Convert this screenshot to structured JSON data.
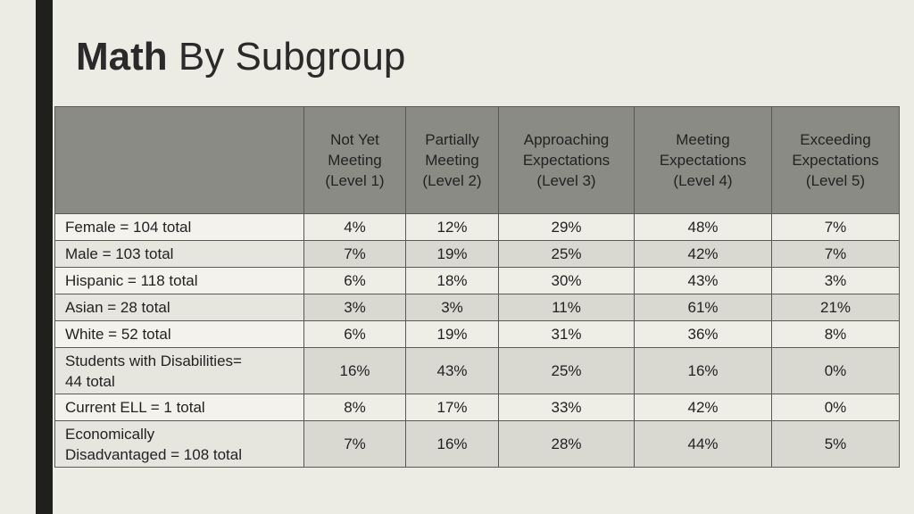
{
  "title": {
    "bold": "Math",
    "rest": "By Subgroup"
  },
  "columns": [
    [
      "Not Yet",
      "Meeting",
      "(Level 1)"
    ],
    [
      "Partially",
      "Meeting",
      "(Level 2)"
    ],
    [
      "Approaching",
      "Expectations",
      "(Level 3)"
    ],
    [
      "Meeting",
      "Expectations",
      "(Level 4)"
    ],
    [
      "Exceeding",
      "Expectations",
      "(Level 5)"
    ]
  ],
  "rows": [
    {
      "label": [
        "Female = 104 total"
      ],
      "values": [
        "4%",
        "12%",
        "29%",
        "48%",
        "7%"
      ]
    },
    {
      "label": [
        "Male = 103 total"
      ],
      "values": [
        "7%",
        "19%",
        "25%",
        "42%",
        "7%"
      ]
    },
    {
      "label": [
        "Hispanic = 118 total"
      ],
      "values": [
        "6%",
        "18%",
        "30%",
        "43%",
        "3%"
      ]
    },
    {
      "label": [
        "Asian = 28 total"
      ],
      "values": [
        "3%",
        "3%",
        "11%",
        "61%",
        "21%"
      ]
    },
    {
      "label": [
        "White = 52 total"
      ],
      "values": [
        "6%",
        "19%",
        "31%",
        "36%",
        "8%"
      ]
    },
    {
      "label": [
        "Students with Disabilities=",
        "44 total"
      ],
      "values": [
        "16%",
        "43%",
        "25%",
        "16%",
        "0%"
      ]
    },
    {
      "label": [
        "Current ELL =  1 total"
      ],
      "values": [
        "8%",
        "17%",
        "33%",
        "42%",
        "0%"
      ]
    },
    {
      "label": [
        "Economically",
        "Disadvantaged  = 108 total"
      ],
      "values": [
        "7%",
        "16%",
        "28%",
        "44%",
        "5%"
      ]
    }
  ]
}
